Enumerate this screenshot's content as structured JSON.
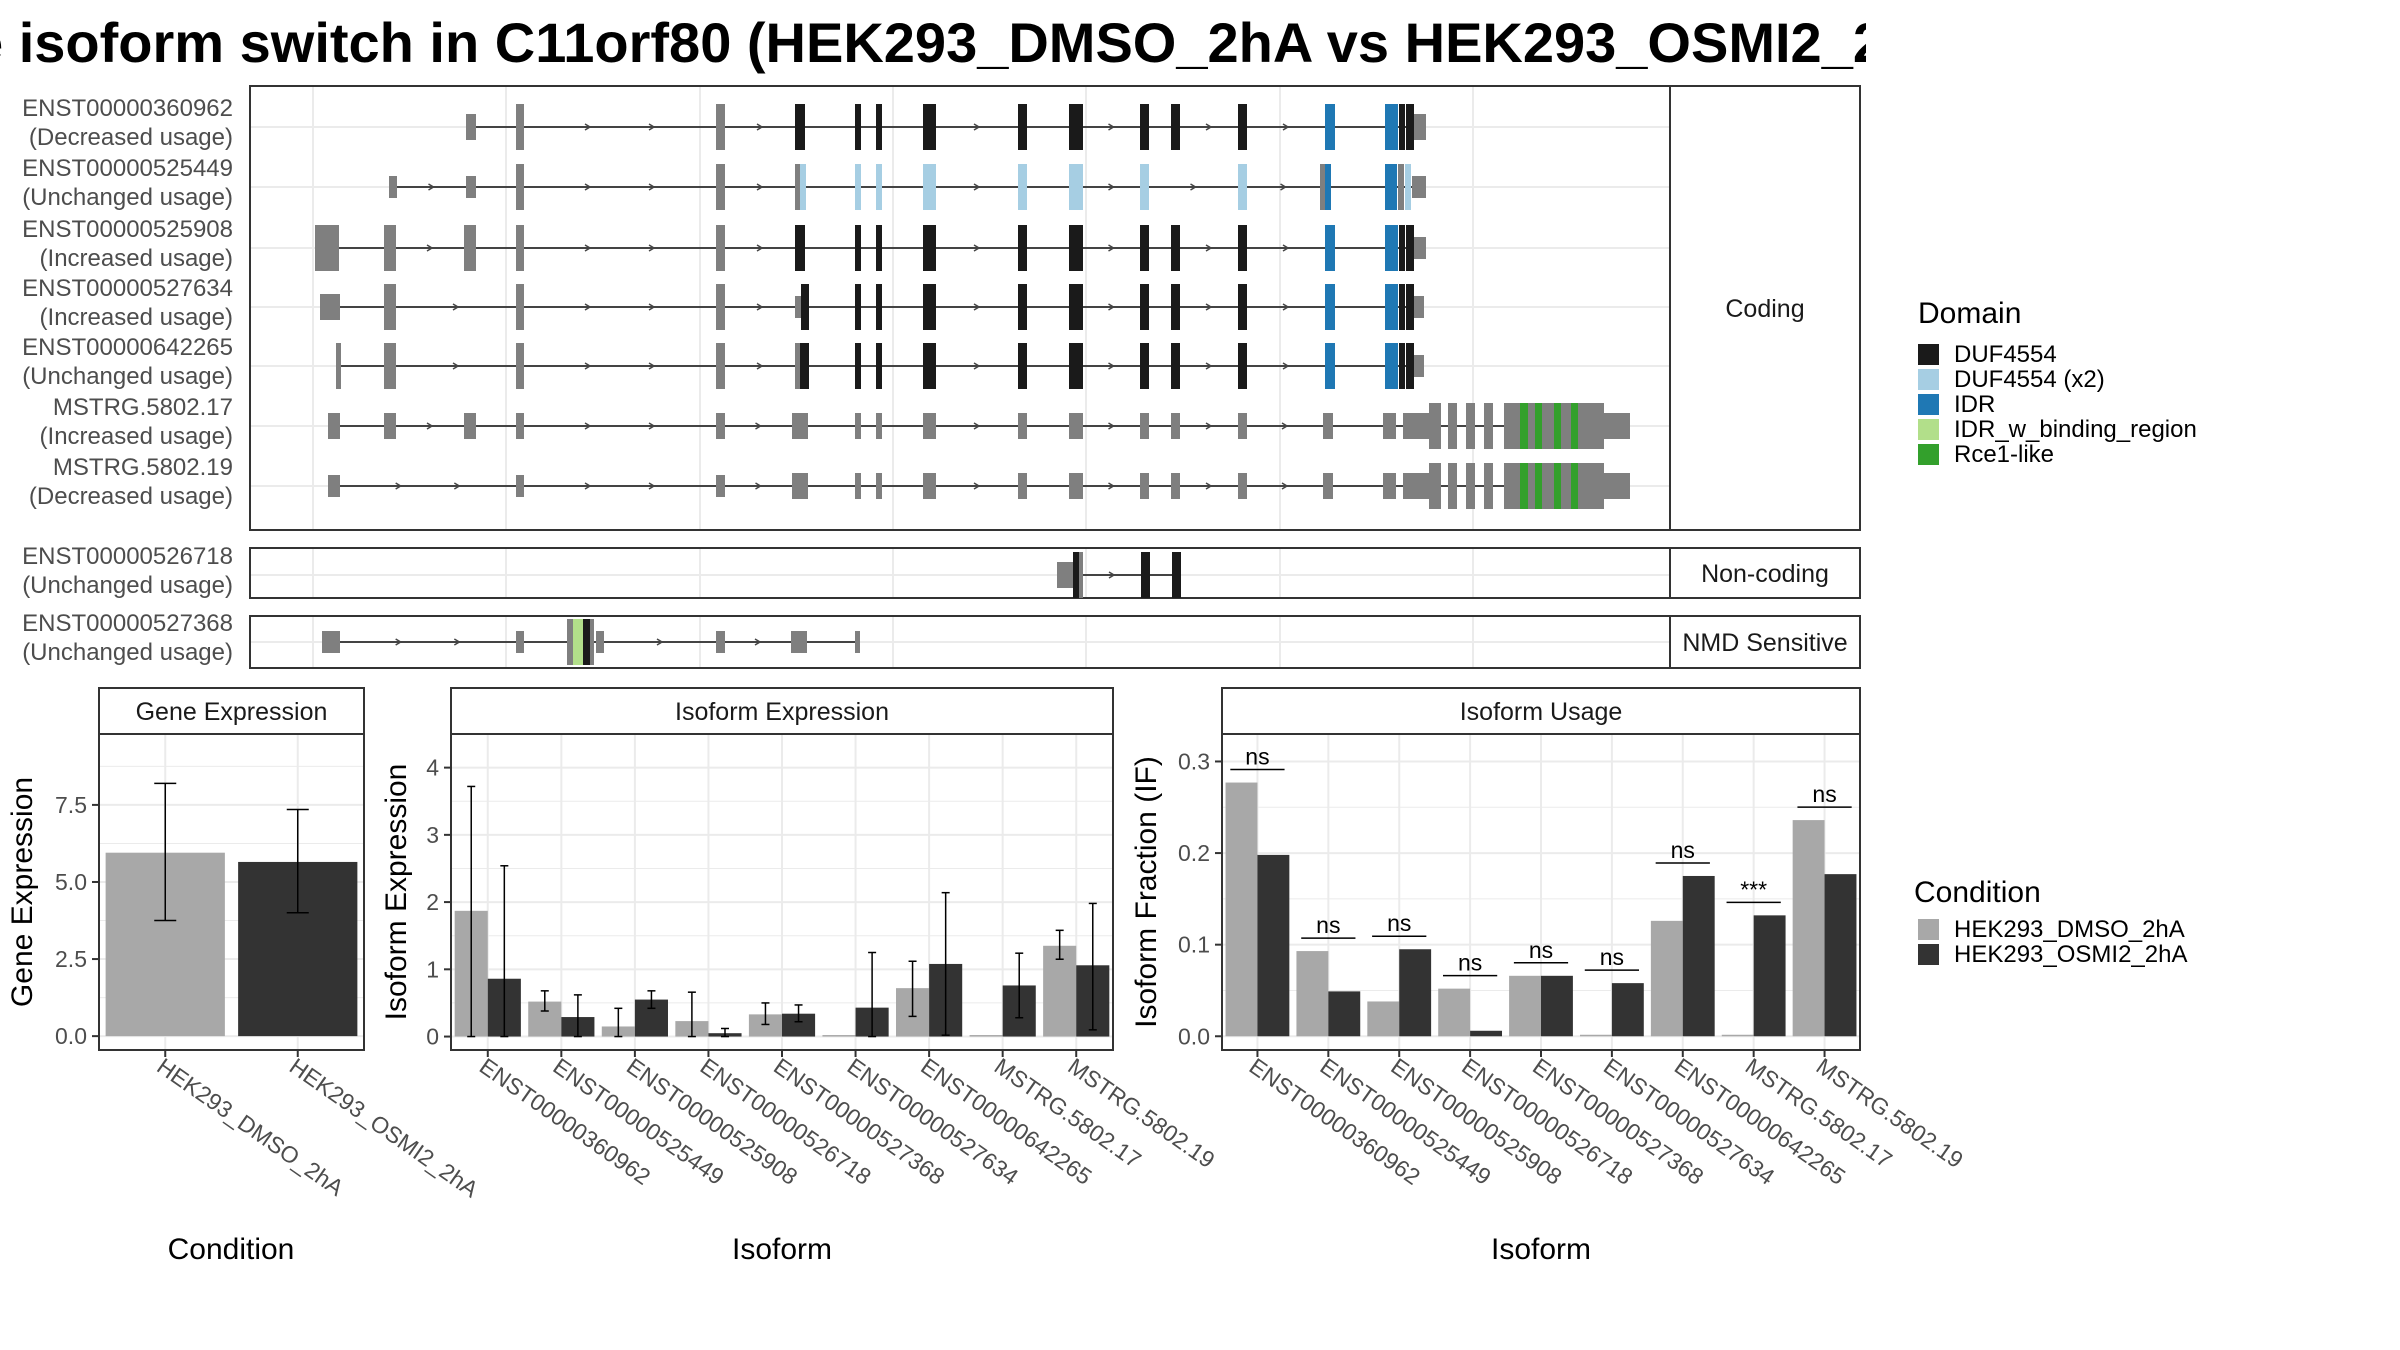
{
  "title": "e isoform switch in C11orf80 (HEK293_DMSO_2hA vs HEK293_OSMI2_2h",
  "structure": {
    "groups": [
      {
        "label": "Coding"
      },
      {
        "label": "Non-coding"
      },
      {
        "label": "NMD Sensitive"
      }
    ],
    "transcripts": [
      {
        "id": "ENST00000360962",
        "usage": "(Decreased usage)",
        "group": 0
      },
      {
        "id": "ENST00000525449",
        "usage": "(Unchanged usage)",
        "group": 0
      },
      {
        "id": "ENST00000525908",
        "usage": "(Increased usage)",
        "group": 0
      },
      {
        "id": "ENST00000527634",
        "usage": "(Increased usage)",
        "group": 0
      },
      {
        "id": "ENST00000642265",
        "usage": "(Unchanged usage)",
        "group": 0
      },
      {
        "id": "MSTRG.5802.17",
        "usage": "(Increased usage)",
        "group": 0
      },
      {
        "id": "MSTRG.5802.19",
        "usage": "(Decreased usage)",
        "group": 0
      },
      {
        "id": "ENST00000526718",
        "usage": "(Unchanged usage)",
        "group": 1
      },
      {
        "id": "ENST00000527368",
        "usage": "(Unchanged usage)",
        "group": 2
      }
    ],
    "domain_legend_title": "Domain",
    "domains": [
      {
        "name": "DUF4554",
        "color": "#1a1a1a"
      },
      {
        "name": "DUF4554 (x2)",
        "color": "#a6cee3"
      },
      {
        "name": "IDR",
        "color": "#1f78b4"
      },
      {
        "name": "IDR_w_binding_region",
        "color": "#b2df8a"
      },
      {
        "name": "Rce1-like",
        "color": "#33a02c"
      }
    ]
  },
  "condition_legend": {
    "title": "Condition",
    "items": [
      {
        "name": "HEK293_DMSO_2hA",
        "color": "#a8a8a8"
      },
      {
        "name": "HEK293_OSMI2_2hA",
        "color": "#333333"
      }
    ]
  },
  "chart_data": [
    {
      "type": "bar",
      "title": "Gene Expression",
      "xlabel": "Condition",
      "ylabel": "Gene Expression",
      "categories": [
        "HEK293_DMSO_2hA",
        "HEK293_OSMI2_2hA"
      ],
      "values": [
        5.95,
        5.65
      ],
      "error_low": [
        3.75,
        4.0
      ],
      "error_high": [
        8.2,
        7.35
      ],
      "ylim": [
        -0.45,
        9.8
      ],
      "yticks": [
        "0.0",
        "2.5",
        "5.0",
        "7.5"
      ],
      "grid": true
    },
    {
      "type": "bar",
      "title": "Isoform Expression",
      "xlabel": "Isoform",
      "ylabel": "Isoform Expression",
      "categories": [
        "ENST00000360962",
        "ENST00000525449",
        "ENST00000525908",
        "ENST00000526718",
        "ENST00000527368",
        "ENST00000527634",
        "ENST00000642265",
        "MSTRG.5802.17",
        "MSTRG.5802.19"
      ],
      "series": [
        {
          "name": "HEK293_DMSO_2hA",
          "values": [
            1.87,
            0.52,
            0.15,
            0.23,
            0.33,
            0.0,
            0.72,
            0.0,
            1.35
          ],
          "error_low": [
            0.0,
            0.38,
            0.0,
            0.0,
            0.18,
            0.0,
            0.3,
            0.0,
            1.15
          ],
          "error_high": [
            3.72,
            0.68,
            0.42,
            0.66,
            0.5,
            0.0,
            1.12,
            0.0,
            1.58
          ]
        },
        {
          "name": "HEK293_OSMI2_2hA",
          "values": [
            0.86,
            0.29,
            0.55,
            0.05,
            0.34,
            0.43,
            1.08,
            0.76,
            1.06
          ],
          "error_low": [
            0.0,
            0.0,
            0.42,
            0.0,
            0.22,
            0.0,
            0.02,
            0.28,
            0.1
          ],
          "error_high": [
            2.54,
            0.62,
            0.68,
            0.12,
            0.47,
            1.25,
            2.14,
            1.24,
            1.98
          ]
        }
      ],
      "ylim": [
        -0.2,
        4.5
      ],
      "yticks": [
        "0",
        "1",
        "2",
        "3",
        "4"
      ],
      "grid": true
    },
    {
      "type": "bar",
      "title": "Isoform Usage",
      "xlabel": "Isoform",
      "ylabel": "Isoform Fraction (IF)",
      "categories": [
        "ENST00000360962",
        "ENST00000525449",
        "ENST00000525908",
        "ENST00000526718",
        "ENST00000527368",
        "ENST00000527634",
        "ENST00000642265",
        "MSTRG.5802.17",
        "MSTRG.5802.19"
      ],
      "series": [
        {
          "name": "HEK293_DMSO_2hA",
          "values": [
            0.277,
            0.093,
            0.038,
            0.052,
            0.066,
            0.0,
            0.126,
            0.0,
            0.236
          ]
        },
        {
          "name": "HEK293_OSMI2_2hA",
          "values": [
            0.198,
            0.049,
            0.095,
            0.006,
            0.066,
            0.058,
            0.175,
            0.132,
            0.177
          ]
        }
      ],
      "significance": [
        "ns",
        "ns",
        "ns",
        "ns",
        "ns",
        "ns",
        "ns",
        "***",
        "ns"
      ],
      "ylim": [
        -0.015,
        0.33
      ],
      "yticks": [
        "0.0",
        "0.1",
        "0.2",
        "0.3"
      ],
      "grid": true
    }
  ]
}
